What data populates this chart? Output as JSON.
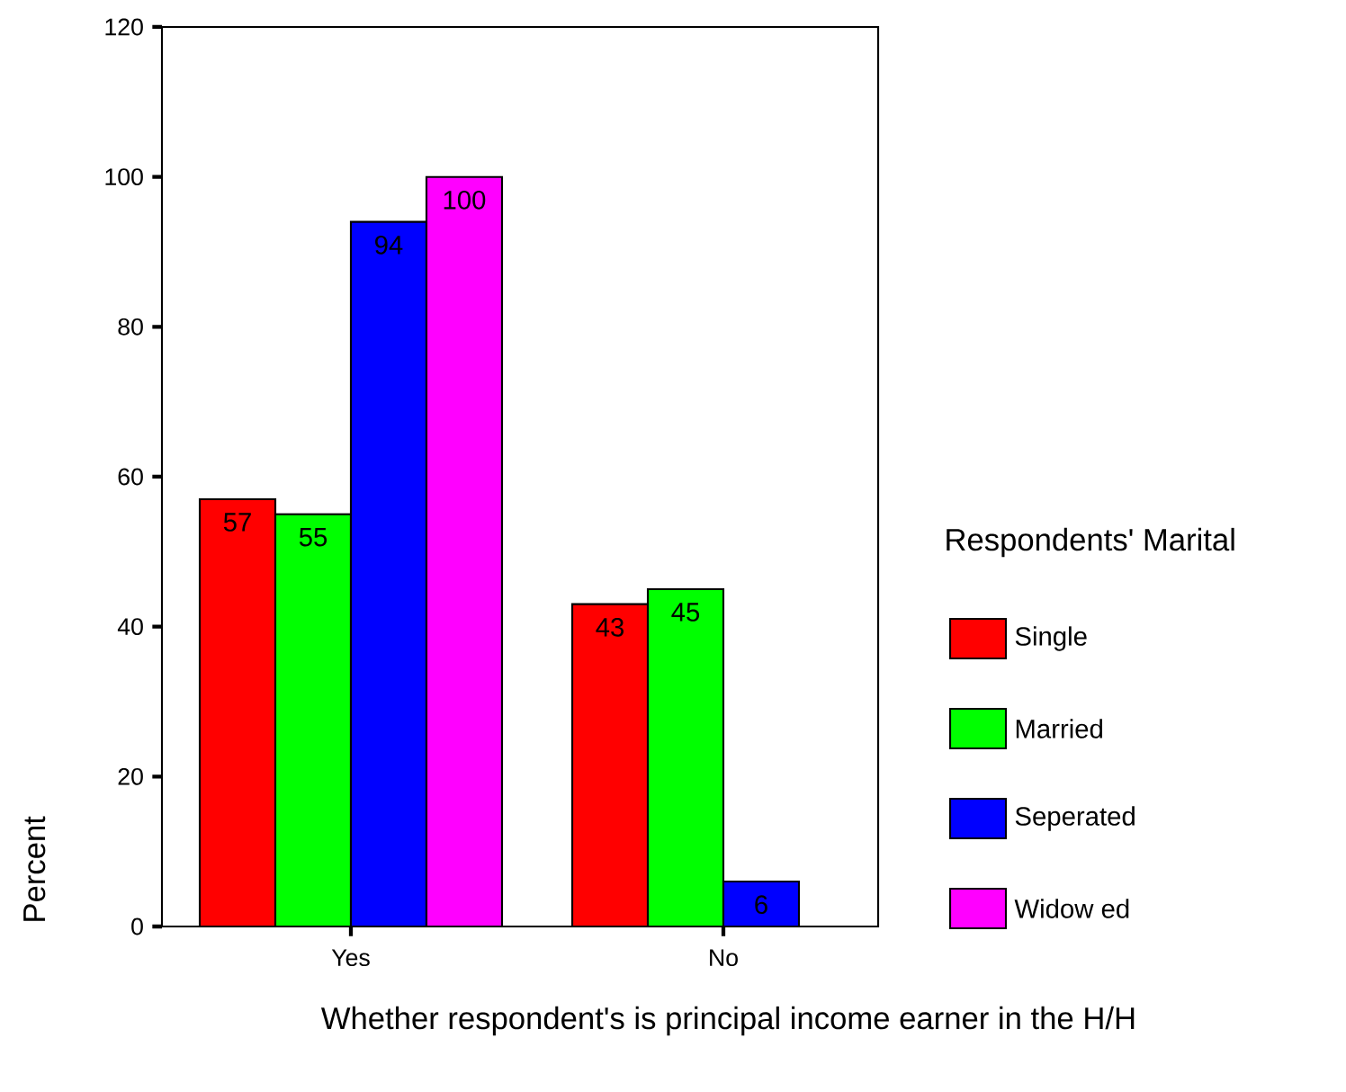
{
  "chart_data": {
    "type": "bar",
    "xlabel": "Whether respondent's is principal income earner in the H/H",
    "ylabel": "Percent",
    "legend_title": "Respondents' Marital",
    "categories": [
      "Yes",
      "No"
    ],
    "series": [
      {
        "name": "Single",
        "color": "#ff0000",
        "values": [
          57,
          43
        ]
      },
      {
        "name": "Married",
        "color": "#00ff00",
        "values": [
          55,
          45
        ]
      },
      {
        "name": "Seperated",
        "color": "#0000ff",
        "values": [
          94,
          6
        ]
      },
      {
        "name": "Widow ed",
        "color": "#ff00ff",
        "values": [
          100,
          null
        ]
      }
    ],
    "ylim": [
      0,
      120
    ],
    "yticks": [
      0,
      20,
      40,
      60,
      80,
      100,
      120
    ],
    "data_labels": true,
    "legend": "right",
    "grid": false
  }
}
